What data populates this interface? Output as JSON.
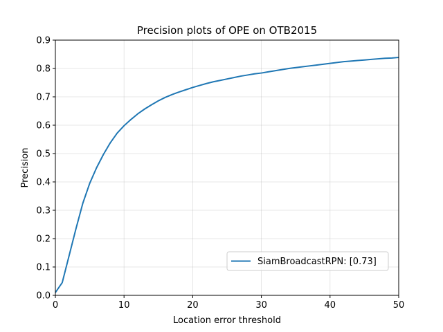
{
  "chart_data": {
    "type": "line",
    "title": "Precision plots of OPE on OTB2015",
    "xlabel": "Location error threshold",
    "ylabel": "Precision",
    "xlim": [
      0,
      50
    ],
    "ylim": [
      0,
      0.9
    ],
    "xticks": [
      0,
      10,
      20,
      30,
      40,
      50
    ],
    "yticks": [
      0.0,
      0.1,
      0.2,
      0.3,
      0.4,
      0.5,
      0.6,
      0.7,
      0.8,
      0.9
    ],
    "xtick_labels": [
      "0",
      "10",
      "20",
      "30",
      "40",
      "50"
    ],
    "ytick_labels": [
      "0.0",
      "0.1",
      "0.2",
      "0.3",
      "0.4",
      "0.5",
      "0.6",
      "0.7",
      "0.8",
      "0.9"
    ],
    "grid": true,
    "legend_position": "lower-right",
    "series": [
      {
        "name": "SiamBroadcastRPN: [0.73]",
        "color": "#1f77b4",
        "x": [
          0,
          1,
          2,
          3,
          4,
          5,
          6,
          7,
          8,
          9,
          10,
          11,
          12,
          13,
          14,
          15,
          16,
          17,
          18,
          19,
          20,
          21,
          22,
          23,
          24,
          25,
          26,
          27,
          28,
          29,
          30,
          31,
          32,
          33,
          34,
          35,
          36,
          37,
          38,
          39,
          40,
          41,
          42,
          43,
          44,
          45,
          46,
          47,
          48,
          49,
          50
        ],
        "y": [
          0.01,
          0.045,
          0.14,
          0.235,
          0.325,
          0.395,
          0.45,
          0.497,
          0.538,
          0.572,
          0.598,
          0.62,
          0.64,
          0.657,
          0.672,
          0.686,
          0.698,
          0.708,
          0.717,
          0.725,
          0.733,
          0.74,
          0.747,
          0.753,
          0.758,
          0.763,
          0.768,
          0.773,
          0.777,
          0.781,
          0.784,
          0.788,
          0.792,
          0.796,
          0.8,
          0.803,
          0.806,
          0.809,
          0.812,
          0.815,
          0.818,
          0.821,
          0.824,
          0.826,
          0.828,
          0.83,
          0.832,
          0.834,
          0.836,
          0.837,
          0.839
        ]
      }
    ]
  }
}
